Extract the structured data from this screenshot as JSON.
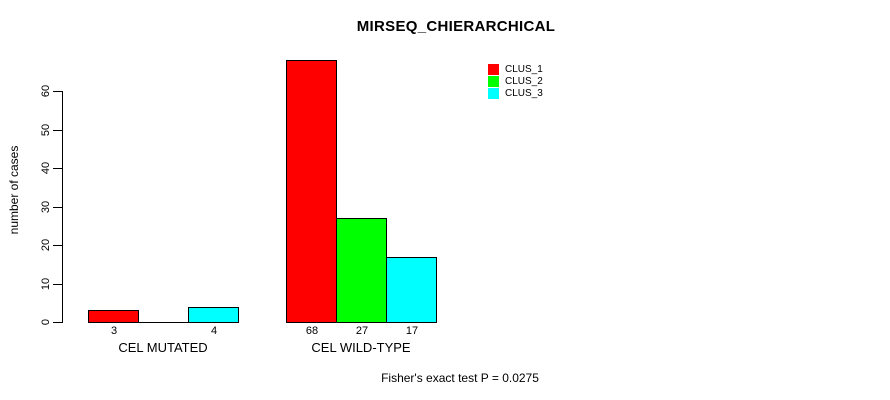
{
  "title": "MIRSEQ_CHIERARCHICAL",
  "annotation": "Fisher's exact test P = 0.0275",
  "colors": {
    "clus_1": "#ff0000",
    "clus_2": "#00ff00",
    "clus_3": "#00ffff",
    "axis": "#000000",
    "background": "#ffffff"
  },
  "chart_data": {
    "type": "bar",
    "title": "MIRSEQ_CHIERARCHICAL",
    "xlabel": "",
    "ylabel": "number of cases",
    "ylim": [
      0,
      68
    ],
    "yticks": [
      0,
      10,
      20,
      30,
      40,
      50,
      60
    ],
    "categories": [
      "CEL MUTATED",
      "CEL WILD-TYPE"
    ],
    "series": [
      {
        "name": "CLUS_1",
        "color": "#ff0000",
        "values": [
          3,
          68
        ]
      },
      {
        "name": "CLUS_2",
        "color": "#00ff00",
        "values": [
          0,
          27
        ]
      },
      {
        "name": "CLUS_3",
        "color": "#00ffff",
        "values": [
          4,
          17
        ]
      }
    ],
    "bar_value_labels": [
      [
        "3",
        "",
        "4"
      ],
      [
        "68",
        "27",
        "17"
      ]
    ],
    "legend": {
      "position": "top-right",
      "entries": [
        {
          "label": "CLUS_1",
          "color": "#ff0000"
        },
        {
          "label": "CLUS_2",
          "color": "#00ff00"
        },
        {
          "label": "CLUS_3",
          "color": "#00ffff"
        }
      ]
    },
    "annotation": "Fisher's exact test P = 0.0275",
    "grid": false,
    "bar_border_color": "#000000"
  }
}
